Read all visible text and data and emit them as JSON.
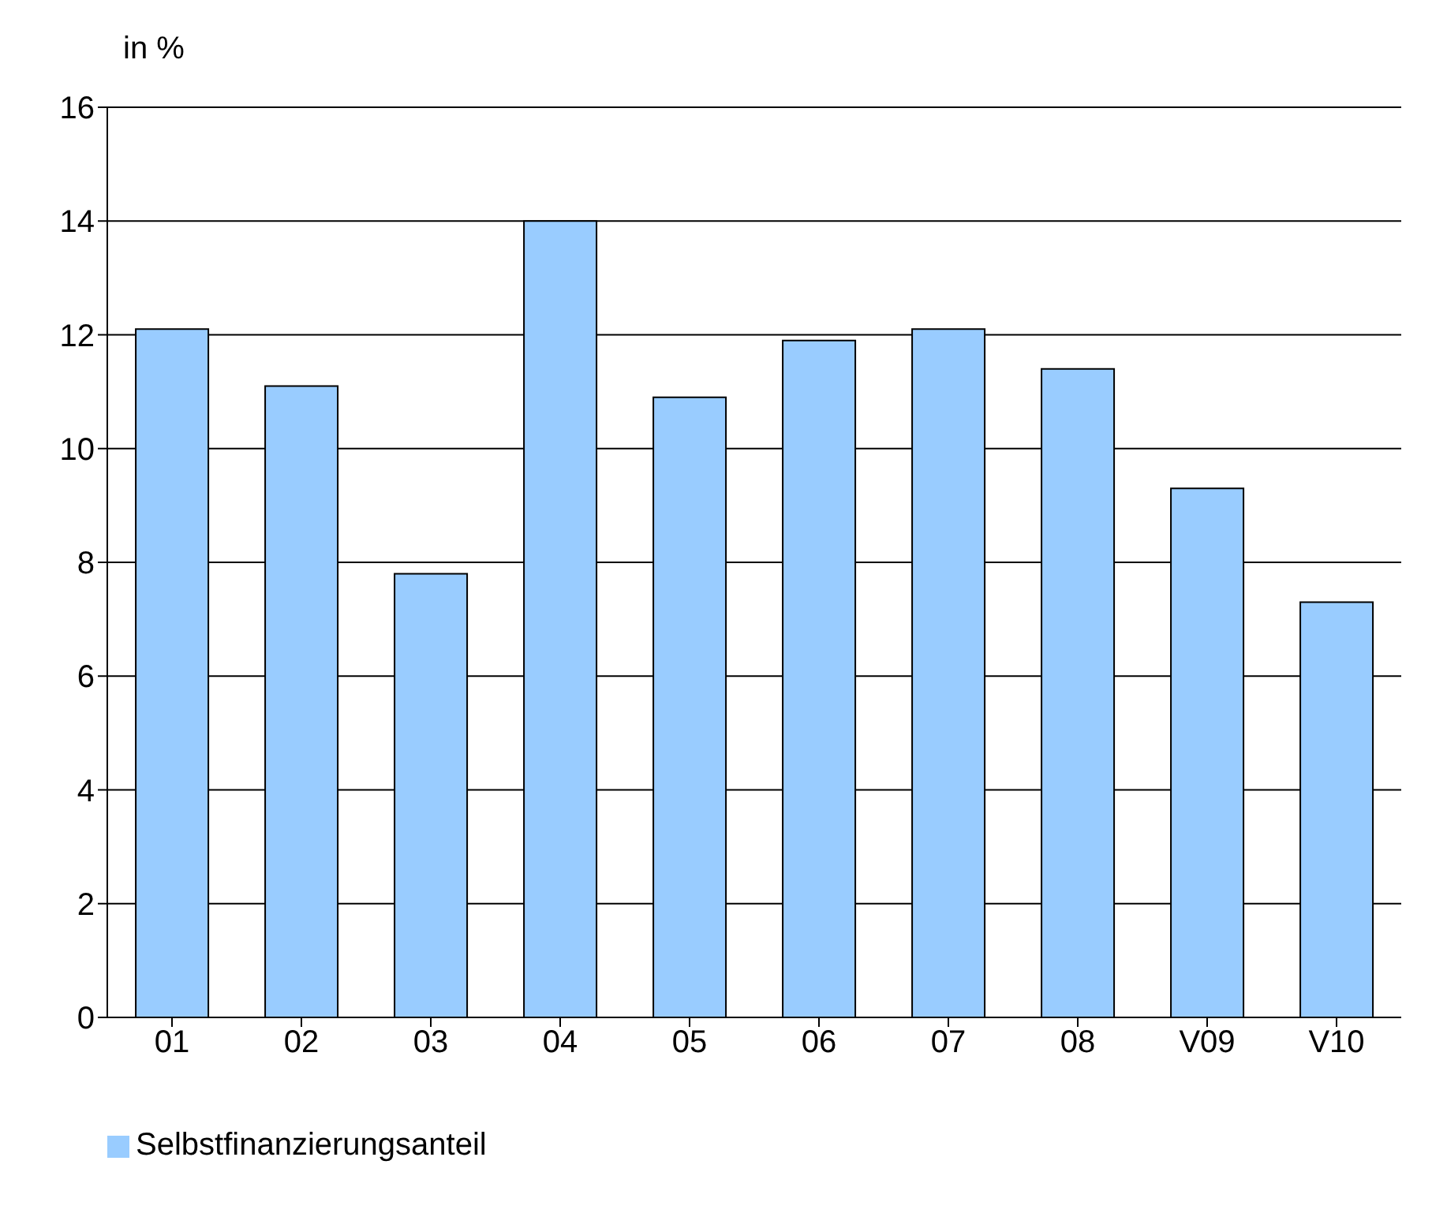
{
  "chart_data": {
    "type": "bar",
    "ylabel": "in %",
    "categories": [
      "01",
      "02",
      "03",
      "04",
      "05",
      "06",
      "07",
      "08",
      "V09",
      "V10"
    ],
    "series": [
      {
        "name": "Selbstfinanzierungsanteil",
        "color": "#99ccff",
        "values": [
          12.1,
          11.1,
          7.8,
          14.0,
          10.9,
          11.9,
          12.1,
          11.4,
          9.3,
          7.3
        ]
      }
    ],
    "ylim": [
      0,
      16
    ],
    "yticks": [
      0,
      2,
      4,
      6,
      8,
      10,
      12,
      14,
      16
    ],
    "grid": "y",
    "legend": "bottom left"
  }
}
